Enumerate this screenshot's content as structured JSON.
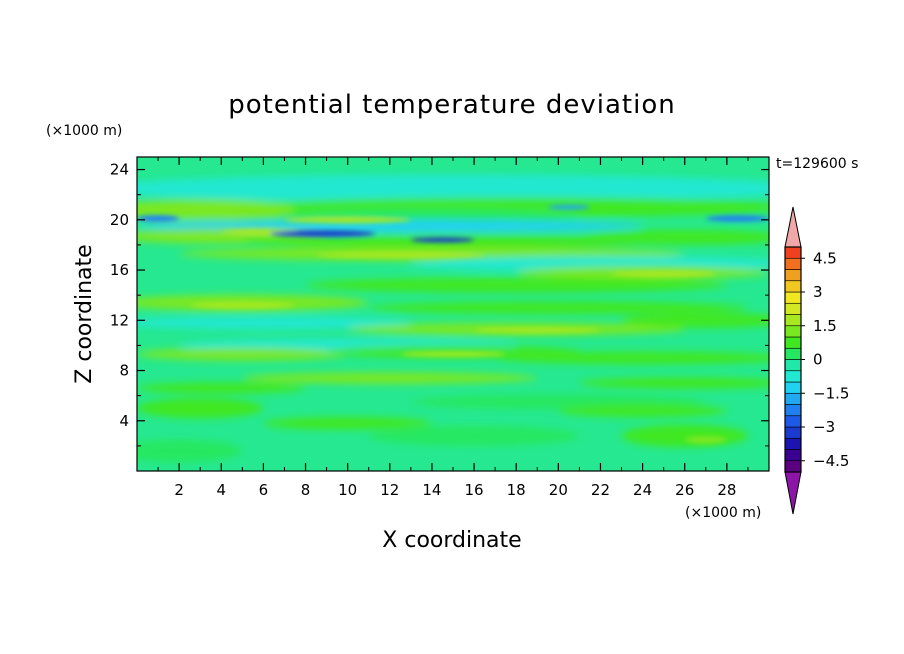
{
  "chart_data": {
    "type": "heatmap",
    "title": "potential temperature deviation",
    "xlabel": "X coordinate",
    "ylabel": "Z coordinate",
    "x_unit": "(×1000 m)",
    "y_unit": "(×1000 m)",
    "time_label": "t=129600 s",
    "xlim": [
      0,
      30
    ],
    "ylim": [
      0,
      25
    ],
    "x_ticks": [
      "2",
      "4",
      "6",
      "8",
      "10",
      "12",
      "14",
      "16",
      "18",
      "20",
      "22",
      "24",
      "26",
      "28"
    ],
    "x_tick_values": [
      2,
      4,
      6,
      8,
      10,
      12,
      14,
      16,
      18,
      20,
      22,
      24,
      26,
      28
    ],
    "y_ticks": [
      "4",
      "8",
      "12",
      "16",
      "20",
      "24"
    ],
    "y_tick_values": [
      4,
      8,
      12,
      16,
      20,
      24
    ],
    "colorbar": {
      "min": -5,
      "max": 5,
      "step": 0.5,
      "tick_labels": [
        "4.5",
        "3",
        "1.5",
        "0",
        "−1.5",
        "−3",
        "−4.5"
      ],
      "tick_values": [
        4.5,
        3,
        1.5,
        0,
        -1.5,
        -3,
        -4.5
      ],
      "extend": "both",
      "colors_low_to_high": [
        "#5a0080",
        "#3a0090",
        "#1c14b0",
        "#1a3ad0",
        "#1e5ae8",
        "#2080f0",
        "#20a8f0",
        "#20d2f0",
        "#20e8d2",
        "#20e8a8",
        "#26e860",
        "#40e820",
        "#7ae820",
        "#a8e820",
        "#d2e820",
        "#f0e820",
        "#f0c820",
        "#f0a020",
        "#f07020",
        "#f04020",
        "#e81e1e"
      ],
      "under_color": "#8c14a8",
      "over_color": "#f0a8a8"
    },
    "layers": [
      {
        "z": 21.2,
        "value": 1.0
      },
      {
        "z": 19.0,
        "value": 1.4
      },
      {
        "z": 18.6,
        "value": -2.8
      },
      {
        "z": 17.2,
        "value": 1.6
      },
      {
        "z": 16.0,
        "value": 1.2
      },
      {
        "z": 13.5,
        "value": 1.3
      },
      {
        "z": 11.0,
        "value": 0.9
      },
      {
        "z": 9.3,
        "value": 1.0
      },
      {
        "z": 7.0,
        "value": 0.6
      },
      {
        "z": 3.8,
        "value": 0.5
      },
      {
        "z": 2.5,
        "value": 0.8
      }
    ]
  }
}
